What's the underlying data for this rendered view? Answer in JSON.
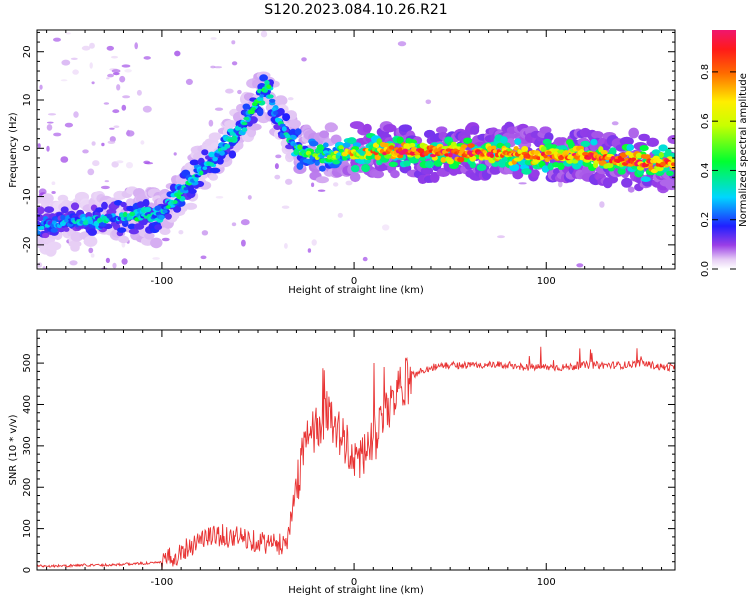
{
  "title": "S120.2023.084.10.26.R21",
  "chart_data": [
    {
      "type": "heatmap",
      "xlabel": "Height of straight line (km)",
      "ylabel": "Frequency (Hz)",
      "xlim": [
        -165,
        167
      ],
      "ylim": [
        -25,
        24.5
      ],
      "xticks": [
        -100,
        0,
        100
      ],
      "yticks": [
        -20,
        -10,
        0,
        10,
        20
      ],
      "colorbar": {
        "label": "Normalized spectral amplitude",
        "range": [
          0,
          0.97
        ],
        "ticks": [
          0.0,
          0.2,
          0.4,
          0.6,
          0.8
        ]
      },
      "ridge": {
        "x": [
          -165,
          -150,
          -130,
          -110,
          -100,
          -90,
          -80,
          -70,
          -60,
          -50,
          -45,
          -40,
          -35,
          -30,
          -25,
          -20,
          -15,
          -10,
          -5,
          0,
          10,
          20,
          40,
          60,
          80,
          100,
          120,
          140,
          150,
          167
        ],
        "y": [
          -16,
          -15.5,
          -14.5,
          -14,
          -14,
          -9,
          -5,
          -1,
          4,
          10,
          13,
          6,
          3,
          0,
          -1,
          -1.5,
          -1,
          -1.5,
          -0.5,
          -1,
          -0.5,
          -0.5,
          -1,
          -1,
          -1.2,
          -1.5,
          -1.5,
          -2.5,
          -3,
          -3
        ],
        "amplitude": [
          0.3,
          0.3,
          0.35,
          0.4,
          0.4,
          0.4,
          0.38,
          0.36,
          0.4,
          0.42,
          0.42,
          0.35,
          0.35,
          0.45,
          0.5,
          0.55,
          0.5,
          0.6,
          0.65,
          0.75,
          0.8,
          0.9,
          0.95,
          0.95,
          0.85,
          0.9,
          0.9,
          0.9,
          0.9,
          0.85
        ]
      }
    },
    {
      "type": "line",
      "xlabel": "Height of straight line (km)",
      "ylabel": "SNR (10 * v/v)",
      "xlim": [
        -165,
        167
      ],
      "ylim": [
        0,
        580
      ],
      "xticks": [
        -100,
        0,
        100
      ],
      "yticks": [
        0,
        100,
        200,
        300,
        400,
        500
      ],
      "color": "#e83232",
      "series": [
        {
          "x": [
            -165,
            -150,
            -140,
            -130,
            -120,
            -110,
            -100,
            -95,
            -90,
            -85,
            -80,
            -75,
            -70,
            -65,
            -60,
            -55,
            -50,
            -45,
            -40,
            -35,
            -32,
            -28,
            -25,
            -22,
            -20,
            -15,
            -10,
            -5,
            0,
            5,
            10,
            15,
            20,
            25,
            30,
            40,
            50,
            60,
            70,
            80,
            90,
            100,
            110,
            120,
            130,
            140,
            150,
            160,
            167
          ],
          "y": [
            10,
            10,
            12,
            12,
            14,
            16,
            18,
            30,
            45,
            60,
            75,
            80,
            85,
            80,
            80,
            75,
            70,
            65,
            60,
            70,
            150,
            250,
            300,
            330,
            340,
            380,
            360,
            300,
            270,
            280,
            300,
            360,
            410,
            440,
            470,
            490,
            495,
            495,
            495,
            495,
            490,
            490,
            490,
            495,
            495,
            495,
            500,
            490,
            490
          ]
        }
      ]
    }
  ]
}
